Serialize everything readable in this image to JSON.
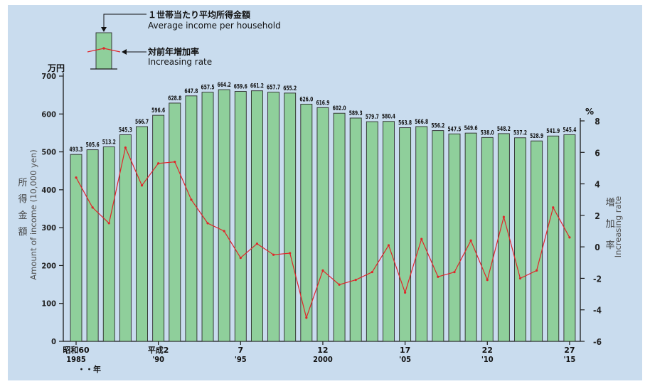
{
  "chart_data": {
    "type": "bar",
    "left_axis": {
      "unit": "万円",
      "label_jp": [
        "所",
        "得",
        "金",
        "額"
      ],
      "label_en": "Amount of income (10,000 yen)",
      "ylim": [
        0,
        700
      ],
      "ticks": [
        "0",
        "100",
        "200",
        "300",
        "400",
        "500",
        "600",
        "700"
      ],
      "tick_values": [
        0,
        100,
        200,
        300,
        400,
        500,
        600,
        700
      ]
    },
    "right_axis": {
      "unit": "%",
      "label_jp": [
        "増",
        "加",
        "率"
      ],
      "label_en": "Increasing rate",
      "ylim": [
        -6,
        8
      ],
      "ticks": [
        "-6",
        "-4",
        "-2",
        "0",
        "2",
        "4",
        "6",
        "8"
      ],
      "tick_values": [
        -6,
        -4,
        -2,
        0,
        2,
        4,
        6,
        8
      ]
    },
    "legend": {
      "bar_label_jp": "１世帯当たり平均所得金額",
      "bar_label_en": "Average income per household",
      "line_label_jp": "対前年増加率",
      "line_label_en": "Increasing rate"
    },
    "bar_labels": [
      "493.3",
      "505.6",
      "513.2",
      "545.3",
      "566.7",
      "596.6",
      "628.8",
      "647.8",
      "657.5",
      "664.2",
      "659.6",
      "661.2",
      "657.7",
      "655.2",
      "626.0",
      "616.9",
      "602.0",
      "589.3",
      "579.7",
      "580.4",
      "563.8",
      "566.8",
      "556.2",
      "547.5",
      "549.6",
      "538.0",
      "548.2",
      "537.2",
      "528.9",
      "541.9",
      "545.4"
    ],
    "series": [
      {
        "name": "１世帯当たり平均所得金額",
        "type": "bar",
        "axis": "left",
        "values": [
          493.3,
          505.6,
          513.2,
          545.3,
          566.7,
          596.6,
          628.8,
          647.8,
          657.5,
          664.2,
          659.6,
          661.2,
          657.7,
          655.2,
          626.0,
          616.9,
          602.0,
          589.3,
          579.7,
          580.4,
          563.8,
          566.8,
          556.2,
          547.5,
          549.6,
          538.0,
          548.2,
          537.2,
          528.9,
          541.9,
          545.4
        ]
      },
      {
        "name": "対前年増加率",
        "type": "line",
        "axis": "right",
        "values": [
          4.4,
          2.5,
          1.5,
          6.3,
          3.9,
          5.3,
          5.4,
          3.0,
          1.5,
          1.0,
          -0.7,
          0.2,
          -0.5,
          -0.4,
          -4.5,
          -1.5,
          -2.4,
          -2.1,
          -1.6,
          0.1,
          -2.9,
          0.5,
          -1.9,
          -1.6,
          0.4,
          -2.1,
          1.9,
          -2.0,
          -1.5,
          2.5,
          0.6
        ]
      }
    ],
    "x_labels": [
      {
        "index": 0,
        "era": "昭和60",
        "year": "1985"
      },
      {
        "index": 5,
        "era": "平成2",
        "year": "'90"
      },
      {
        "index": 10,
        "era": "7",
        "year": "'95"
      },
      {
        "index": 15,
        "era": "12",
        "year": "2000"
      },
      {
        "index": 20,
        "era": "17",
        "year": "'05"
      },
      {
        "index": 25,
        "era": "22",
        "year": "'10"
      },
      {
        "index": 30,
        "era": "27",
        "year": "'15"
      }
    ],
    "x_unit": "・・年",
    "colors": {
      "background": "#c9dcee",
      "bar_fill": "#8fcf9b",
      "bar_stroke": "#2a2a2a",
      "line": "#e0262a",
      "axis": "#1a1a1a"
    }
  }
}
